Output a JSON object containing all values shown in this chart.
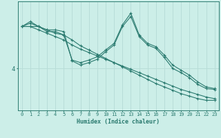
{
  "xlabel": "Humidex (Indice chaleur)",
  "bg_color": "#cceee8",
  "line_color": "#2a7a6f",
  "grid_color": "#b8ddd8",
  "x_ticks": [
    0,
    1,
    2,
    3,
    4,
    5,
    6,
    7,
    8,
    9,
    10,
    11,
    12,
    13,
    14,
    15,
    16,
    17,
    18,
    19,
    20,
    21,
    22,
    23
  ],
  "ytick_label": "4",
  "ytick_value": 4,
  "series": [
    {
      "x": [
        0,
        1,
        2,
        3,
        4,
        5,
        6,
        7,
        8,
        9,
        10,
        11,
        12,
        13,
        14,
        15,
        16,
        17,
        18,
        19,
        20,
        21,
        22,
        23
      ],
      "y": [
        6.5,
        6.5,
        6.3,
        6.1,
        5.9,
        5.7,
        5.4,
        5.15,
        4.95,
        4.75,
        4.55,
        4.35,
        4.15,
        3.95,
        3.75,
        3.55,
        3.35,
        3.15,
        2.95,
        2.75,
        2.6,
        2.45,
        2.3,
        2.2
      ]
    },
    {
      "x": [
        0,
        1,
        2,
        3,
        4,
        5,
        6,
        7,
        8,
        9,
        10,
        11,
        12,
        13,
        14,
        15,
        16,
        17,
        18,
        19,
        20,
        21,
        22,
        23
      ],
      "y": [
        6.5,
        6.5,
        6.5,
        6.3,
        6.1,
        6.0,
        5.7,
        5.35,
        5.1,
        4.85,
        4.6,
        4.35,
        4.1,
        3.85,
        3.6,
        3.35,
        3.1,
        2.9,
        2.7,
        2.5,
        2.35,
        2.2,
        2.1,
        2.1
      ]
    },
    {
      "x": [
        0,
        1,
        2,
        3,
        4,
        5,
        6,
        7,
        8,
        9,
        10,
        11,
        12,
        13,
        14,
        15,
        16,
        17,
        18,
        19,
        20,
        21,
        22,
        23
      ],
      "y": [
        6.5,
        6.7,
        6.5,
        6.2,
        6.2,
        6.0,
        4.5,
        4.35,
        4.5,
        4.7,
        5.1,
        5.5,
        6.6,
        7.3,
        6.0,
        5.5,
        5.3,
        4.8,
        4.2,
        3.9,
        3.6,
        3.2,
        2.9,
        2.8
      ]
    },
    {
      "x": [
        0,
        1,
        2,
        3,
        4,
        5,
        6,
        7,
        8,
        9,
        10,
        11,
        12,
        13,
        14,
        15,
        16,
        17,
        18,
        19,
        20,
        21,
        22,
        23
      ],
      "y": [
        6.5,
        6.8,
        6.5,
        6.3,
        6.3,
        6.2,
        4.45,
        4.2,
        4.35,
        4.55,
        5.0,
        5.4,
        6.5,
        7.1,
        5.9,
        5.4,
        5.2,
        4.65,
        4.0,
        3.75,
        3.45,
        3.05,
        2.8,
        2.75
      ]
    }
  ],
  "ylim": [
    1.5,
    8.0
  ],
  "xlim": [
    -0.5,
    23.5
  ]
}
